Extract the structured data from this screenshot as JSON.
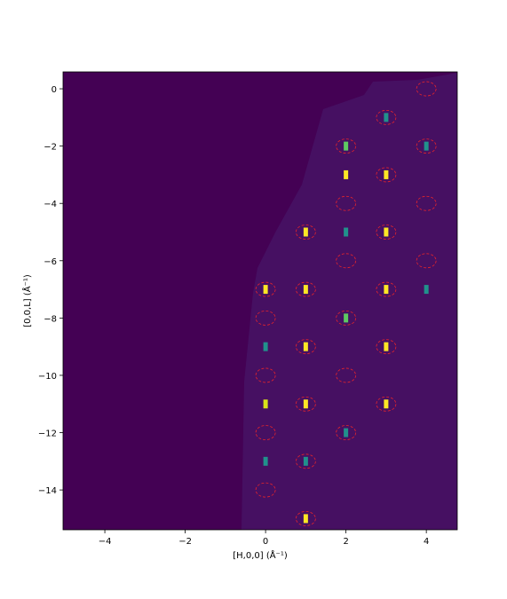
{
  "chart_data": {
    "type": "image",
    "xlabel": "[H,0,0] (Å⁻¹)",
    "ylabel": "[0,0,L] (Å⁻¹)",
    "xlim": [
      -5.04,
      4.77
    ],
    "ylim": [
      -15.39,
      0.59
    ],
    "xticks": [
      {
        "value": -4,
        "label": "−4"
      },
      {
        "value": -2,
        "label": "−2"
      },
      0,
      2,
      4
    ],
    "yticks": [
      0,
      {
        "value": -2,
        "label": "−2"
      },
      {
        "value": -4,
        "label": "−4"
      },
      {
        "value": -6,
        "label": "−6"
      },
      {
        "value": -8,
        "label": "−8"
      },
      {
        "value": -10,
        "label": "−10"
      },
      {
        "value": -12,
        "label": "−12"
      },
      {
        "value": -14,
        "label": "−14"
      }
    ],
    "background": "#440154",
    "spots": {
      "x": [
        1,
        1,
        1,
        1,
        1,
        3,
        3,
        3,
        3,
        3,
        2,
        2,
        0,
        0,
        0,
        0,
        4,
        4,
        2,
        2,
        3,
        1,
        2
      ],
      "y": [
        -5,
        -7,
        -9,
        -11,
        -15,
        -3,
        -5,
        -7,
        -9,
        -11,
        -3,
        -2,
        -7,
        -11,
        -9,
        -13,
        -2,
        -7,
        -8,
        -12,
        -1,
        -13,
        -5
      ],
      "colors": [
        "#fde725",
        "#fde725",
        "#fde725",
        "#fde725",
        "#fde725",
        "#fde725",
        "#fde725",
        "#fde725",
        "#fde725",
        "#fde725",
        "#fde725",
        "#5ec962",
        "#fde725",
        "#d8e219",
        "#21918c",
        "#21918c",
        "#21918c",
        "#21918c",
        "#5ec962",
        "#21918c",
        "#21918c",
        "#21918c",
        "#21918c"
      ]
    },
    "circles": {
      "x": [
        4,
        3,
        2,
        4,
        3,
        2,
        4,
        1,
        3,
        2,
        4,
        0,
        1,
        3,
        0,
        2,
        1,
        3,
        0,
        2,
        1,
        3,
        0,
        2,
        1,
        0,
        1
      ],
      "y": [
        0,
        -1,
        -2,
        -2,
        -3,
        -4,
        -4,
        -5,
        -5,
        -6,
        -6,
        -7,
        -7,
        -7,
        -8,
        -8,
        -9,
        -9,
        -10,
        -10,
        -11,
        -11,
        -12,
        -12,
        -13,
        -14,
        -15
      ],
      "color": "#e8242a"
    }
  }
}
